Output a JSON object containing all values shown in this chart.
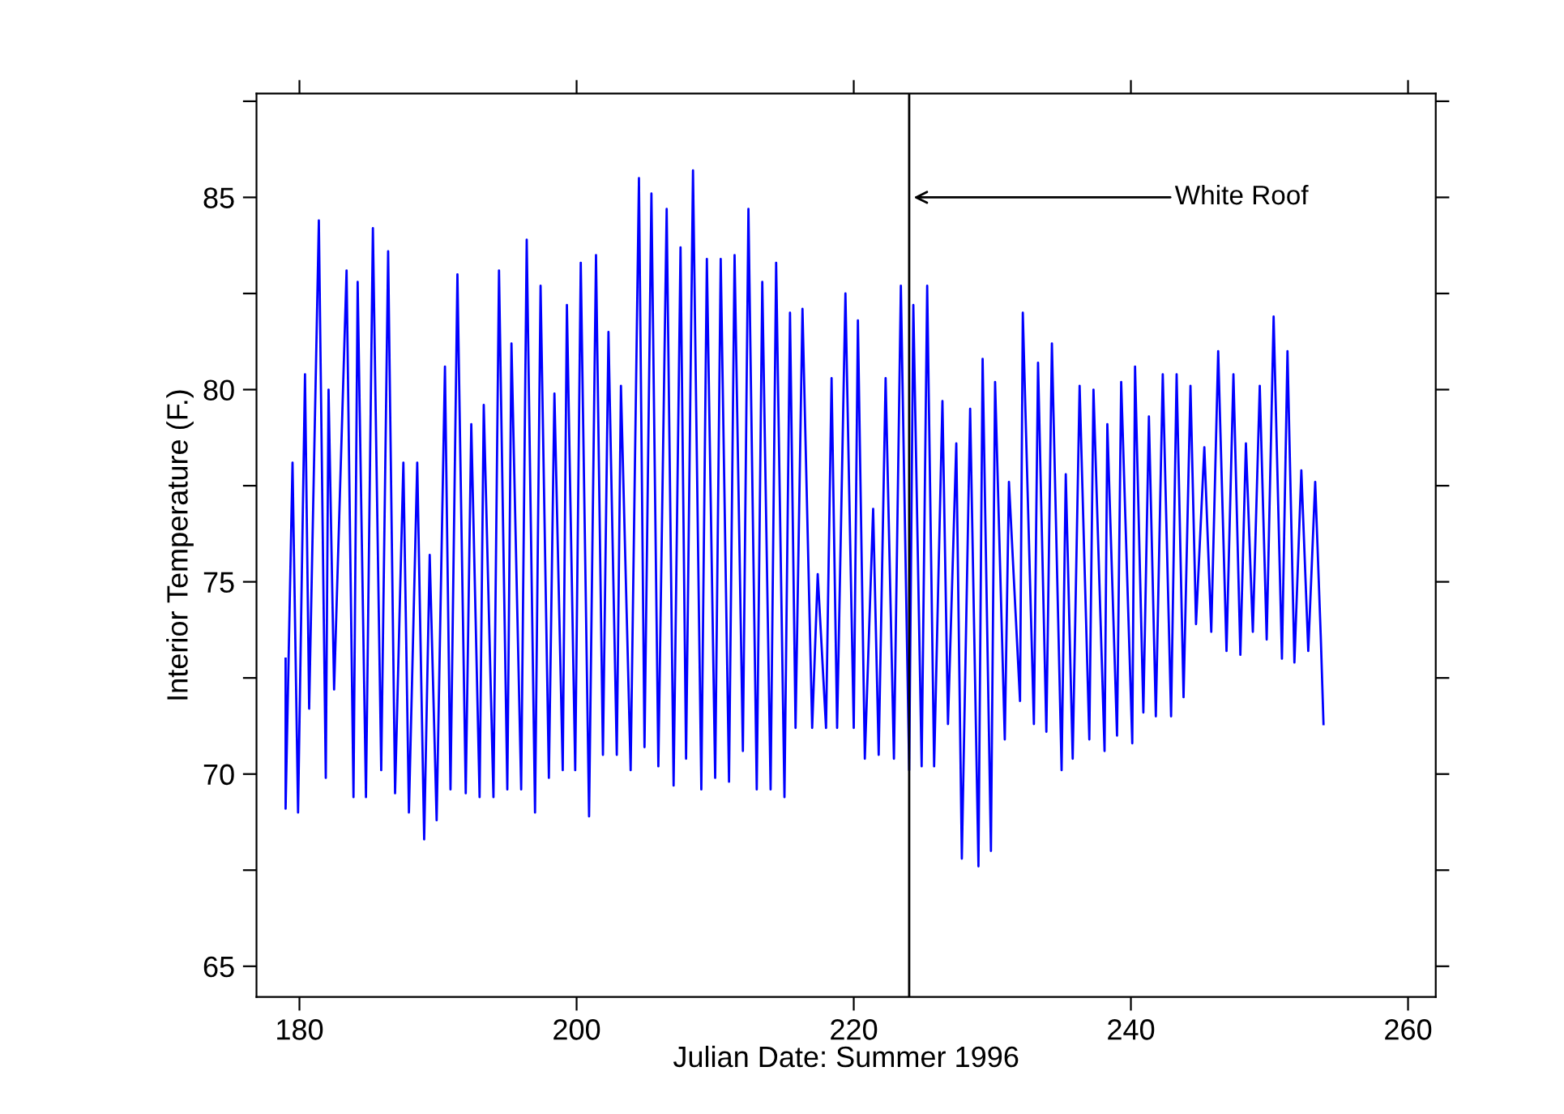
{
  "chart_data": {
    "type": "line",
    "xlabel": "Julian Date: Summer 1996",
    "ylabel": "Interior Temperature (F.)",
    "xlim": [
      176.9,
      262
    ],
    "ylim": [
      64.2,
      87.7
    ],
    "xticks": [
      180,
      200,
      220,
      240,
      260
    ],
    "yticks": [
      65,
      {
        "value": 67.5,
        "label": null
      },
      70,
      {
        "value": 72.5,
        "label": null
      },
      75,
      {
        "value": 77.5,
        "label": null
      },
      80,
      {
        "value": 82.5,
        "label": null
      },
      85,
      {
        "value": 87.5,
        "label": null
      }
    ],
    "grid": false,
    "legend": false,
    "series": [
      {
        "color": "#0000ff",
        "x": [
          179.0,
          179.0,
          179.5,
          179.9,
          180.4,
          180.7,
          181.4,
          181.9,
          182.1,
          182.5,
          183.4,
          183.9,
          184.2,
          184.8,
          185.3,
          185.9,
          186.4,
          186.9,
          187.5,
          187.9,
          188.5,
          189.0,
          189.4,
          189.9,
          190.5,
          190.9,
          191.4,
          192.0,
          192.4,
          193.0,
          193.3,
          194.0,
          194.4,
          195.0,
          195.3,
          196.0,
          196.4,
          197.0,
          197.4,
          198.0,
          198.4,
          199.0,
          199.3,
          199.9,
          200.3,
          200.9,
          201.4,
          201.9,
          202.3,
          202.9,
          203.2,
          203.9,
          204.5,
          204.9,
          205.4,
          205.9,
          206.5,
          207.0,
          207.5,
          207.9,
          208.4,
          209.0,
          209.4,
          210.0,
          210.4,
          211.0,
          211.4,
          212.0,
          212.4,
          213.0,
          213.4,
          214.0,
          214.4,
          215.0,
          215.4,
          215.8,
          216.3,
          217.0,
          217.4,
          218.0,
          218.4,
          218.8,
          219.4,
          220.0,
          220.3,
          220.8,
          221.4,
          221.8,
          222.3,
          222.9,
          223.4,
          224.0,
          224.3,
          224.9,
          225.3,
          225.8,
          226.4,
          226.8,
          227.4,
          227.8,
          228.4,
          229.0,
          229.3,
          229.9,
          230.2,
          230.9,
          231.2,
          232.0,
          232.2,
          233.0,
          233.3,
          233.9,
          234.3,
          235.0,
          235.3,
          235.8,
          236.3,
          237.0,
          237.3,
          238.1,
          238.3,
          239.0,
          239.3,
          240.1,
          240.3,
          240.9,
          241.3,
          241.8,
          242.3,
          242.9,
          243.3,
          243.8,
          244.3,
          244.7,
          245.3,
          245.8,
          246.3,
          246.9,
          247.4,
          247.9,
          248.3,
          248.8,
          249.3,
          249.8,
          250.3,
          250.9,
          251.3,
          251.8,
          252.3,
          252.8,
          253.3,
          253.7,
          253.9
        ],
        "values": [
          73.0,
          69.1,
          78.1,
          69.0,
          80.4,
          71.7,
          84.4,
          69.9,
          80.0,
          72.2,
          83.1,
          69.4,
          82.8,
          69.4,
          84.2,
          70.1,
          83.6,
          69.5,
          78.1,
          69.0,
          78.1,
          68.3,
          75.7,
          68.8,
          80.6,
          69.6,
          83.0,
          69.5,
          79.1,
          69.4,
          79.6,
          69.4,
          83.1,
          69.6,
          81.2,
          69.6,
          83.9,
          69.0,
          82.7,
          69.9,
          79.9,
          70.1,
          82.2,
          70.1,
          83.3,
          68.9,
          83.5,
          70.5,
          81.5,
          70.5,
          80.1,
          70.1,
          85.5,
          70.7,
          85.1,
          70.2,
          84.7,
          69.7,
          83.7,
          70.4,
          85.7,
          69.6,
          83.4,
          69.9,
          83.4,
          69.8,
          83.5,
          70.6,
          84.7,
          69.6,
          82.8,
          69.6,
          83.3,
          69.4,
          82.0,
          71.2,
          82.1,
          71.2,
          75.2,
          71.2,
          80.3,
          71.2,
          82.5,
          71.2,
          81.8,
          70.4,
          76.9,
          70.5,
          80.3,
          70.4,
          82.7,
          70.1,
          82.2,
          70.2,
          82.7,
          70.2,
          79.7,
          71.3,
          78.6,
          67.8,
          79.5,
          67.6,
          80.8,
          68.0,
          80.2,
          70.9,
          77.6,
          71.9,
          82.0,
          71.3,
          80.7,
          71.1,
          81.2,
          70.1,
          77.8,
          70.4,
          80.1,
          70.9,
          80.0,
          70.6,
          79.1,
          71.0,
          80.2,
          70.8,
          80.6,
          71.6,
          79.3,
          71.5,
          80.4,
          71.5,
          80.4,
          72.0,
          80.1,
          73.9,
          78.5,
          73.7,
          81.0,
          73.2,
          80.4,
          73.1,
          78.6,
          73.7,
          80.1,
          73.5,
          81.9,
          73.0,
          81.0,
          72.9,
          77.9,
          73.2,
          77.6,
          73.6,
          71.3
        ]
      }
    ],
    "ref_lines": [
      {
        "axis": "x",
        "value": 224,
        "color": "#000000"
      }
    ],
    "annotations": [
      {
        "text": "White Roof",
        "x": 224,
        "y": 85
      }
    ]
  }
}
